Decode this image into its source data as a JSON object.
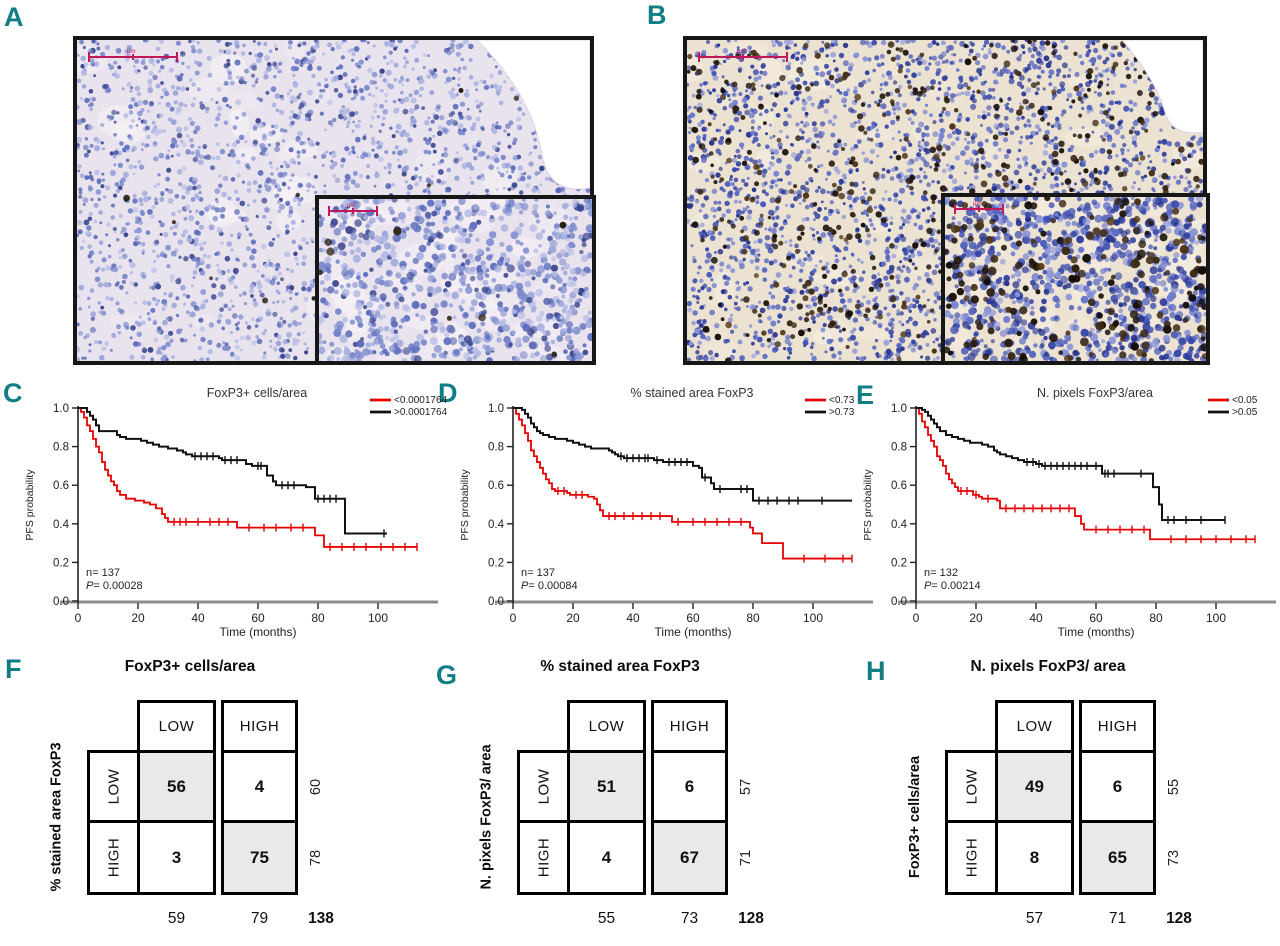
{
  "accent_colors": {
    "panel_label": "#117d85",
    "curve_red": "#e60000",
    "curve_black": "#111111",
    "scale_bar": "#c2185b",
    "table_shaded": "#e7eae8",
    "axis_baseline": "#8c8c8c"
  },
  "panels": {
    "a": "A",
    "b": "B",
    "c": "C",
    "d": "D",
    "e": "E",
    "f": "F",
    "g": "G",
    "h": "H"
  },
  "histology": {
    "a": {
      "bg": "#e9e3ee",
      "blob": "#f8f3f6",
      "nuclei_palette": [
        "#9aa4d8",
        "#7d8ccd",
        "#6273c2",
        "#8b97d2",
        "#a9b1e0",
        "#5a69b8",
        "#b7bde6",
        "#3b478f"
      ],
      "stain_palette": [
        "#33281a",
        "#20180d"
      ],
      "nuclei_count": 2400,
      "stain_count": 14,
      "inset_nuclei": 820,
      "inset_stain": 8,
      "scale_bar_text": "µm"
    },
    "b": {
      "bg": "#ece2d2",
      "blob": "#f6efe2",
      "nuclei_palette": [
        "#4556b8",
        "#5b6ac4",
        "#3647a8",
        "#6f7ccd",
        "#2d3c9b",
        "#8d97d8",
        "#25328c"
      ],
      "stain_palette": [
        "#2a1d10",
        "#3c2a14",
        "#1c1208",
        "#4e3518",
        "#120c05"
      ],
      "nuclei_count": 2850,
      "stain_count": 560,
      "inset_nuclei": 930,
      "inset_stain": 185,
      "scale_bar_text": "µm"
    }
  },
  "chart_data": [
    {
      "type": "line",
      "subtype": "kaplan-meier",
      "title": "FoxP3+ cells/area",
      "xlabel": "Time (months)",
      "ylabel": "PFS probability",
      "x_ticks": [
        0,
        20,
        40,
        60,
        80,
        100
      ],
      "y_ticks": [
        "0.0",
        "0.2",
        "0.4",
        "0.6",
        "0.8",
        "1.0"
      ],
      "xlim": [
        0,
        120
      ],
      "ylim": [
        0,
        1
      ],
      "grid": false,
      "legend_position": "top-right",
      "n_label": "n= 137",
      "p_label": "P= 0.00028",
      "series": [
        {
          "name": "<0.0001764",
          "color": "#e60000",
          "end": 113,
          "steps": [
            [
              0,
              1.0
            ],
            [
              1,
              0.98
            ],
            [
              2,
              0.95
            ],
            [
              3,
              0.91
            ],
            [
              4,
              0.88
            ],
            [
              5,
              0.84
            ],
            [
              6,
              0.8
            ],
            [
              7,
              0.77
            ],
            [
              8,
              0.72
            ],
            [
              9,
              0.68
            ],
            [
              10,
              0.65
            ],
            [
              11,
              0.62
            ],
            [
              12,
              0.6
            ],
            [
              13,
              0.57
            ],
            [
              14,
              0.55
            ],
            [
              16,
              0.53
            ],
            [
              19,
              0.52
            ],
            [
              22,
              0.51
            ],
            [
              24,
              0.5
            ],
            [
              26,
              0.48
            ],
            [
              28,
              0.45
            ],
            [
              29,
              0.43
            ],
            [
              30,
              0.41
            ],
            [
              53,
              0.38
            ],
            [
              79,
              0.34
            ],
            [
              82,
              0.28
            ]
          ],
          "censors": [
            32,
            34,
            36,
            40,
            44,
            47,
            50,
            57,
            62,
            66,
            71,
            75,
            84,
            88,
            92,
            96,
            101,
            105,
            109,
            113
          ]
        },
        {
          "name": ">0.0001764",
          "color": "#111111",
          "end": 103,
          "steps": [
            [
              0,
              1.0
            ],
            [
              3,
              0.98
            ],
            [
              4,
              0.96
            ],
            [
              5,
              0.94
            ],
            [
              6,
              0.91
            ],
            [
              7,
              0.88
            ],
            [
              13,
              0.86
            ],
            [
              14,
              0.85
            ],
            [
              16,
              0.84
            ],
            [
              21,
              0.83
            ],
            [
              23,
              0.82
            ],
            [
              25,
              0.81
            ],
            [
              27,
              0.8
            ],
            [
              30,
              0.79
            ],
            [
              33,
              0.78
            ],
            [
              35,
              0.77
            ],
            [
              36,
              0.76
            ],
            [
              38,
              0.75
            ],
            [
              47,
              0.74
            ],
            [
              48,
              0.73
            ],
            [
              56,
              0.71
            ],
            [
              58,
              0.7
            ],
            [
              63,
              0.65
            ],
            [
              65,
              0.62
            ],
            [
              66,
              0.6
            ],
            [
              76,
              0.59
            ],
            [
              79,
              0.53
            ],
            [
              89,
              0.35
            ]
          ],
          "censors": [
            39,
            41,
            43,
            45,
            49,
            51,
            53,
            60,
            61,
            68,
            70,
            72,
            80,
            82,
            84,
            86,
            102
          ]
        }
      ]
    },
    {
      "type": "line",
      "subtype": "kaplan-meier",
      "title": "% stained area FoxP3",
      "xlabel": "Time (months)",
      "ylabel": "PFS probability",
      "x_ticks": [
        0,
        20,
        40,
        60,
        80,
        100
      ],
      "y_ticks": [
        "0.0",
        "0.2",
        "0.4",
        "0.6",
        "0.8",
        "1.0"
      ],
      "xlim": [
        0,
        120
      ],
      "ylim": [
        0,
        1
      ],
      "grid": false,
      "legend_position": "top-right",
      "n_label": "n= 137",
      "p_label": "P= 0.00084",
      "series": [
        {
          "name": "<0.73",
          "color": "#e60000",
          "end": 113,
          "steps": [
            [
              0,
              1.0
            ],
            [
              1,
              0.97
            ],
            [
              2,
              0.94
            ],
            [
              3,
              0.91
            ],
            [
              4,
              0.87
            ],
            [
              5,
              0.83
            ],
            [
              6,
              0.78
            ],
            [
              7,
              0.75
            ],
            [
              8,
              0.72
            ],
            [
              9,
              0.69
            ],
            [
              10,
              0.66
            ],
            [
              11,
              0.63
            ],
            [
              12,
              0.61
            ],
            [
              13,
              0.58
            ],
            [
              14,
              0.57
            ],
            [
              18,
              0.56
            ],
            [
              19,
              0.55
            ],
            [
              25,
              0.54
            ],
            [
              27,
              0.53
            ],
            [
              28,
              0.5
            ],
            [
              29,
              0.47
            ],
            [
              30,
              0.44
            ],
            [
              53,
              0.41
            ],
            [
              79,
              0.38
            ],
            [
              80,
              0.35
            ],
            [
              83,
              0.3
            ],
            [
              90,
              0.22
            ]
          ],
          "censors": [
            15,
            17,
            21,
            23,
            32,
            34,
            37,
            40,
            43,
            46,
            49,
            55,
            60,
            64,
            68,
            72,
            76,
            97,
            104,
            110,
            113
          ]
        },
        {
          "name": ">0.73",
          "color": "#111111",
          "end": 113,
          "steps": [
            [
              0,
              1.0
            ],
            [
              3,
              0.99
            ],
            [
              4,
              0.97
            ],
            [
              5,
              0.95
            ],
            [
              6,
              0.92
            ],
            [
              7,
              0.9
            ],
            [
              8,
              0.88
            ],
            [
              9,
              0.87
            ],
            [
              10,
              0.86
            ],
            [
              12,
              0.85
            ],
            [
              14,
              0.84
            ],
            [
              18,
              0.83
            ],
            [
              20,
              0.82
            ],
            [
              22,
              0.81
            ],
            [
              24,
              0.8
            ],
            [
              26,
              0.79
            ],
            [
              32,
              0.78
            ],
            [
              33,
              0.77
            ],
            [
              34,
              0.76
            ],
            [
              35,
              0.75
            ],
            [
              37,
              0.74
            ],
            [
              47,
              0.73
            ],
            [
              50,
              0.72
            ],
            [
              60,
              0.7
            ],
            [
              62,
              0.69
            ],
            [
              63,
              0.64
            ],
            [
              66,
              0.61
            ],
            [
              67,
              0.58
            ],
            [
              80,
              0.52
            ]
          ],
          "censors": [
            36,
            38,
            40,
            42,
            44,
            45,
            48,
            52,
            54,
            56,
            58,
            64,
            69,
            76,
            78,
            82,
            85,
            88,
            92,
            95,
            103
          ]
        }
      ]
    },
    {
      "type": "line",
      "subtype": "kaplan-meier",
      "title": "N. pixels FoxP3/area",
      "xlabel": "Time (months)",
      "ylabel": "PFS probability",
      "x_ticks": [
        0,
        20,
        40,
        60,
        80,
        100
      ],
      "y_ticks": [
        "0.0",
        "0.2",
        "0.4",
        "0.6",
        "0.8",
        "1.0"
      ],
      "xlim": [
        0,
        120
      ],
      "ylim": [
        0,
        1
      ],
      "grid": false,
      "legend_position": "top-right",
      "n_label": "n= 132",
      "p_label": "P= 0.00214",
      "series": [
        {
          "name": "<0.05",
          "color": "#e60000",
          "end": 113,
          "steps": [
            [
              0,
              1.0
            ],
            [
              1,
              0.97
            ],
            [
              2,
              0.93
            ],
            [
              3,
              0.9
            ],
            [
              4,
              0.86
            ],
            [
              5,
              0.83
            ],
            [
              6,
              0.8
            ],
            [
              7,
              0.75
            ],
            [
              8,
              0.73
            ],
            [
              9,
              0.7
            ],
            [
              10,
              0.66
            ],
            [
              11,
              0.63
            ],
            [
              12,
              0.61
            ],
            [
              13,
              0.59
            ],
            [
              14,
              0.57
            ],
            [
              19,
              0.55
            ],
            [
              21,
              0.54
            ],
            [
              22,
              0.53
            ],
            [
              27,
              0.52
            ],
            [
              28,
              0.48
            ],
            [
              53,
              0.44
            ],
            [
              55,
              0.4
            ],
            [
              56,
              0.37
            ],
            [
              78,
              0.32
            ]
          ],
          "censors": [
            15,
            17,
            20,
            24,
            30,
            33,
            36,
            39,
            42,
            45,
            48,
            51,
            60,
            64,
            68,
            72,
            76,
            85,
            90,
            95,
            100,
            105,
            110,
            113
          ]
        },
        {
          "name": ">0.05",
          "color": "#111111",
          "end": 103,
          "steps": [
            [
              0,
              1.0
            ],
            [
              2,
              0.99
            ],
            [
              3,
              0.98
            ],
            [
              4,
              0.96
            ],
            [
              5,
              0.94
            ],
            [
              6,
              0.92
            ],
            [
              7,
              0.9
            ],
            [
              8,
              0.88
            ],
            [
              10,
              0.86
            ],
            [
              12,
              0.85
            ],
            [
              14,
              0.84
            ],
            [
              16,
              0.83
            ],
            [
              18,
              0.82
            ],
            [
              22,
              0.81
            ],
            [
              24,
              0.8
            ],
            [
              26,
              0.78
            ],
            [
              27,
              0.77
            ],
            [
              28,
              0.76
            ],
            [
              30,
              0.75
            ],
            [
              32,
              0.74
            ],
            [
              34,
              0.73
            ],
            [
              36,
              0.72
            ],
            [
              40,
              0.71
            ],
            [
              42,
              0.7
            ],
            [
              62,
              0.66
            ],
            [
              79,
              0.59
            ],
            [
              81,
              0.5
            ],
            [
              82,
              0.42
            ]
          ],
          "censors": [
            37,
            39,
            41,
            43,
            45,
            47,
            49,
            51,
            53,
            55,
            57,
            60,
            63,
            64,
            66,
            75,
            84,
            86,
            90,
            95,
            103
          ]
        }
      ]
    }
  ],
  "tables": [
    {
      "label": "F",
      "title": "FoxP3+ cells/area",
      "row_axis": "% stained area FoxP3",
      "col_headers": [
        "LOW",
        "HIGH"
      ],
      "row_headers": [
        "LOW",
        "HIGH"
      ],
      "cells": [
        [
          "56",
          "4"
        ],
        [
          "3",
          "75"
        ]
      ],
      "row_totals": [
        "60",
        "78"
      ],
      "col_totals": [
        "59",
        "79"
      ],
      "grand_total": "138"
    },
    {
      "label": "G",
      "title": "% stained area FoxP3",
      "row_axis": "N. pixels FoxP3/ area",
      "col_headers": [
        "LOW",
        "HIGH"
      ],
      "row_headers": [
        "LOW",
        "HIGH"
      ],
      "cells": [
        [
          "51",
          "6"
        ],
        [
          "4",
          "67"
        ]
      ],
      "row_totals": [
        "57",
        "71"
      ],
      "col_totals": [
        "55",
        "73"
      ],
      "grand_total": "128"
    },
    {
      "label": "H",
      "title": "N. pixels FoxP3/ area",
      "row_axis": "FoxP3+ cells/area",
      "col_headers": [
        "LOW",
        "HIGH"
      ],
      "row_headers": [
        "LOW",
        "HIGH"
      ],
      "cells": [
        [
          "49",
          "6"
        ],
        [
          "8",
          "65"
        ]
      ],
      "row_totals": [
        "55",
        "73"
      ],
      "col_totals": [
        "57",
        "71"
      ],
      "grand_total": "128"
    }
  ]
}
